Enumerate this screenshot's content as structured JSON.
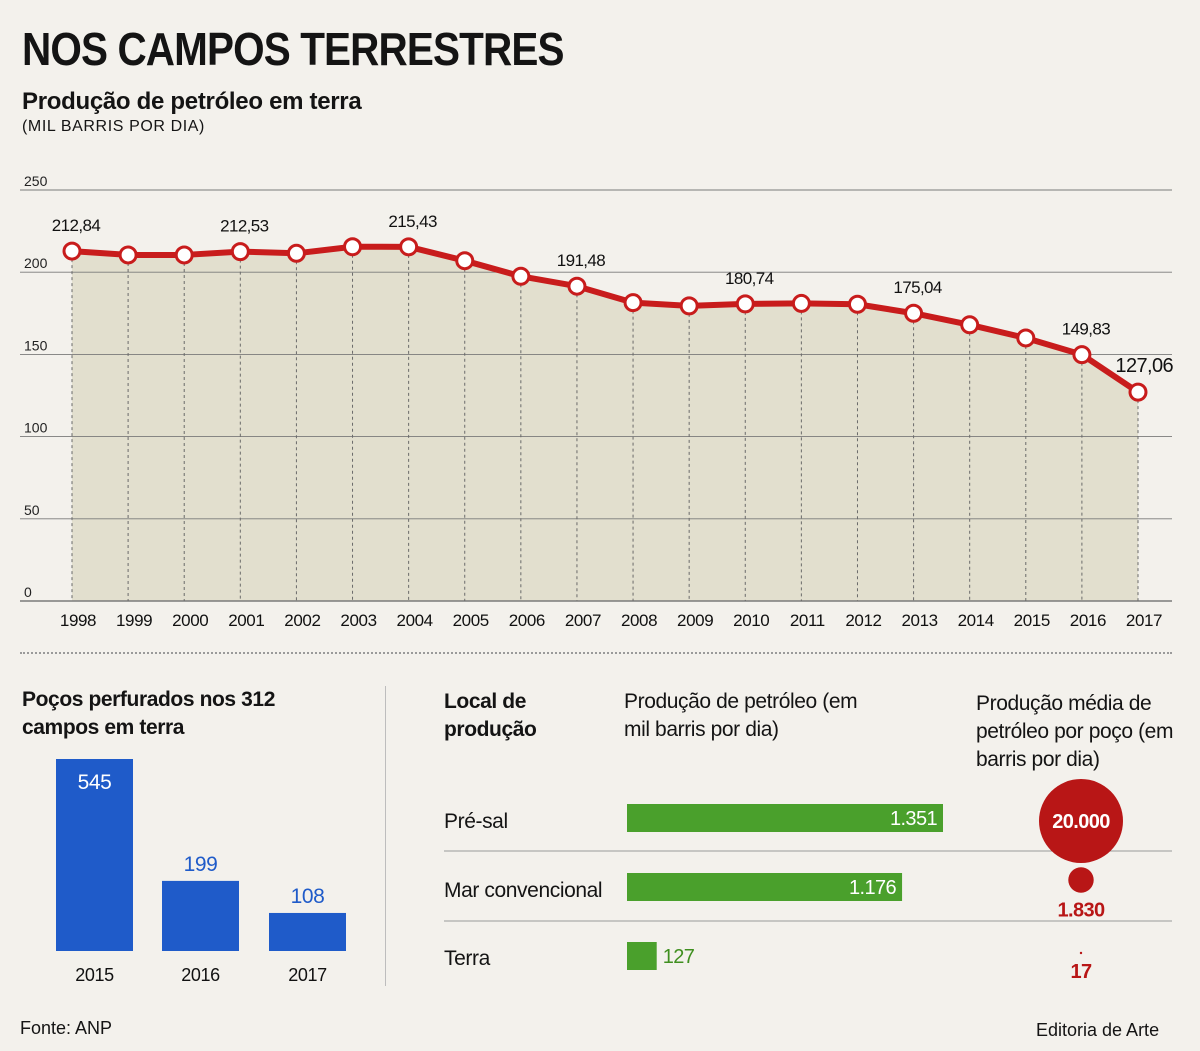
{
  "title": "NOS CAMPOS TERRESTRES",
  "subtitle": "Produção de petróleo em terra",
  "unit": "(MIL BARRIS POR DIA)",
  "colors": {
    "line": "#c81c1c",
    "area": "#dcd8c4",
    "wells_bar": "#1f5bc9",
    "wells_label": "#1f5bc9",
    "prod_bar": "#4aa02c",
    "avg_circle": "#b81616"
  },
  "chart_data": [
    {
      "type": "line",
      "title": "Produção de petróleo em terra",
      "subtitle": "(MIL BARRIS POR DIA)",
      "x": [
        "1998",
        "1999",
        "2000",
        "2001",
        "2002",
        "2003",
        "2004",
        "2005",
        "2006",
        "2007",
        "2008",
        "2009",
        "2010",
        "2011",
        "2012",
        "2013",
        "2014",
        "2015",
        "2016",
        "2017"
      ],
      "y": [
        212.84,
        210.5,
        210.5,
        212.53,
        211.5,
        215.5,
        215.43,
        207,
        197.5,
        191.48,
        181.5,
        179.5,
        180.74,
        181,
        180.5,
        175.04,
        168,
        160,
        149.83,
        127.06
      ],
      "labels": [
        {
          "x": "1998",
          "text": "212,84"
        },
        {
          "x": "2001",
          "text": "212,53"
        },
        {
          "x": "2004",
          "text": "215,43"
        },
        {
          "x": "2007",
          "text": "191,48"
        },
        {
          "x": "2010",
          "text": "180,74"
        },
        {
          "x": "2013",
          "text": "175,04"
        },
        {
          "x": "2016",
          "text": "149,83"
        },
        {
          "x": "2017",
          "text": "127,06"
        }
      ],
      "yticks": [
        "0",
        "50",
        "100",
        "150",
        "200",
        "250"
      ],
      "ylim": [
        0,
        250
      ],
      "grid": true
    },
    {
      "type": "bar",
      "title": "Poços perfurados nos 312 campos em terra",
      "categories": [
        "2015",
        "2016",
        "2017"
      ],
      "values": [
        545,
        199,
        108
      ],
      "value_labels": [
        "545",
        "199",
        "108"
      ]
    },
    {
      "type": "bar",
      "orientation": "horizontal",
      "row_header": "Local de produção",
      "title": "Produção de petróleo (em mil barris por dia)",
      "categories": [
        "Pré-sal",
        "Mar convencional",
        "Terra"
      ],
      "values": [
        1351,
        1176,
        127
      ],
      "value_labels": [
        "1.351",
        "1.176",
        "127"
      ]
    },
    {
      "type": "scatter",
      "encoding": "circle area",
      "title": "Produção média de petróleo por poço (em barris por dia)",
      "categories": [
        "Pré-sal",
        "Mar convencional",
        "Terra"
      ],
      "values": [
        20000,
        1830,
        17
      ],
      "value_labels": [
        "20.000",
        "1.830",
        "17"
      ]
    }
  ],
  "source": "Fonte: ANP",
  "credit": "Editoria de Arte"
}
